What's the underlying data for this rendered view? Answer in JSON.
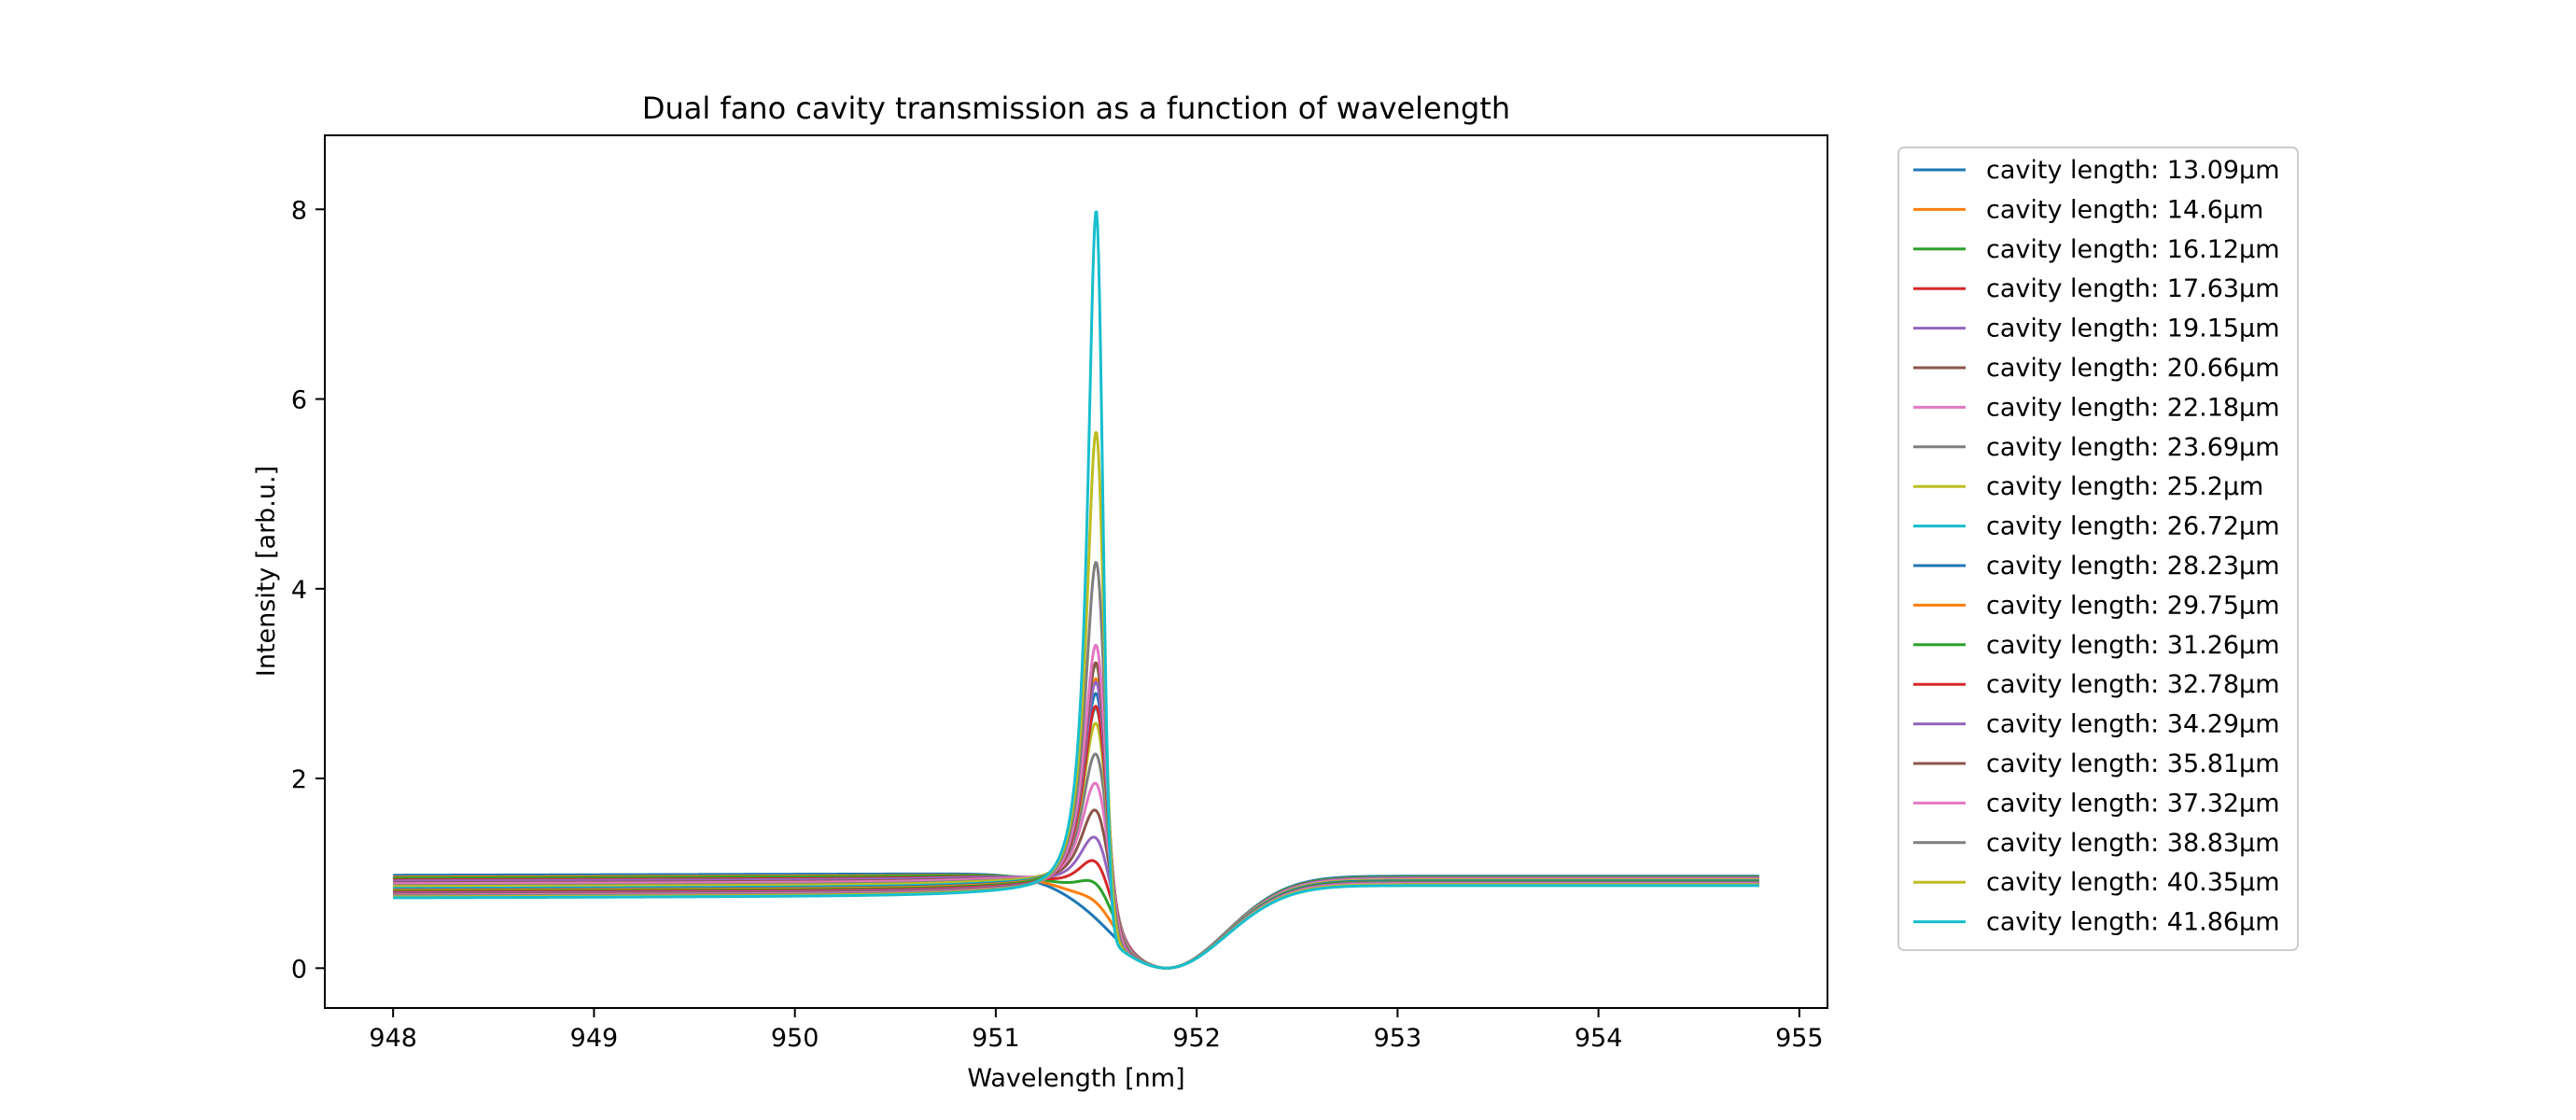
{
  "chart_data": {
    "type": "line",
    "title": "Dual fano cavity transmission as a function of wavelength",
    "xlabel": "Wavelength [nm]",
    "ylabel": "Intensity [arb.u.]",
    "xlim": [
      947.66,
      955.14
    ],
    "ylim": [
      -0.42,
      8.78
    ],
    "x_ticks": [
      948,
      949,
      950,
      951,
      952,
      953,
      954,
      955
    ],
    "x_tick_labels": [
      "948",
      "949",
      "950",
      "951",
      "952",
      "953",
      "954",
      "955"
    ],
    "y_ticks": [
      0,
      2,
      4,
      6,
      8
    ],
    "y_tick_labels": [
      "0",
      "2",
      "4",
      "6",
      "8"
    ],
    "grid": false,
    "legend_position": "outside-right",
    "x_range": [
      948.0,
      954.8
    ],
    "series": [
      {
        "name": "cavity length: 13.09µm",
        "color": "#1f77b4",
        "baseline": 0.98,
        "peak": 1.0,
        "tail": 0.97
      },
      {
        "name": "cavity length: 14.6µm",
        "color": "#ff7f0e",
        "baseline": 0.96,
        "peak": 1.16,
        "tail": 0.96
      },
      {
        "name": "cavity length: 16.12µm",
        "color": "#2ca02c",
        "baseline": 0.95,
        "peak": 1.35,
        "tail": 0.96
      },
      {
        "name": "cavity length: 17.63µm",
        "color": "#d62728",
        "baseline": 0.93,
        "peak": 1.57,
        "tail": 0.95
      },
      {
        "name": "cavity length: 19.15µm",
        "color": "#9467bd",
        "baseline": 0.92,
        "peak": 1.82,
        "tail": 0.95
      },
      {
        "name": "cavity length: 20.66µm",
        "color": "#8c564b",
        "baseline": 0.9,
        "peak": 2.1,
        "tail": 0.94
      },
      {
        "name": "cavity length: 22.18µm",
        "color": "#e377c2",
        "baseline": 0.89,
        "peak": 2.38,
        "tail": 0.94
      },
      {
        "name": "cavity length: 23.69µm",
        "color": "#7f7f7f",
        "baseline": 0.87,
        "peak": 2.68,
        "tail": 0.93
      },
      {
        "name": "cavity length: 25.2µm",
        "color": "#bcbd22",
        "baseline": 0.86,
        "peak": 3.0,
        "tail": 0.93
      },
      {
        "name": "cavity length: 26.72µm",
        "color": "#17becf",
        "baseline": 0.84,
        "peak": 3.15,
        "tail": 0.92
      },
      {
        "name": "cavity length: 28.23µm",
        "color": "#1f77b4",
        "baseline": 0.83,
        "peak": 3.3,
        "tail": 0.92
      },
      {
        "name": "cavity length: 29.75µm",
        "color": "#ff7f0e",
        "baseline": 0.82,
        "peak": 3.45,
        "tail": 0.91
      },
      {
        "name": "cavity length: 31.26µm",
        "color": "#2ca02c",
        "baseline": 0.81,
        "peak": 3.6,
        "tail": 0.91
      },
      {
        "name": "cavity length: 32.78µm",
        "color": "#d62728",
        "baseline": 0.8,
        "peak": 3.15,
        "tail": 0.9
      },
      {
        "name": "cavity length: 34.29µm",
        "color": "#9467bd",
        "baseline": 0.79,
        "peak": 3.4,
        "tail": 0.9
      },
      {
        "name": "cavity length: 35.81µm",
        "color": "#8c564b",
        "baseline": 0.78,
        "peak": 3.6,
        "tail": 0.89
      },
      {
        "name": "cavity length: 37.32µm",
        "color": "#e377c2",
        "baseline": 0.77,
        "peak": 3.78,
        "tail": 0.89
      },
      {
        "name": "cavity length: 38.83µm",
        "color": "#7f7f7f",
        "baseline": 0.76,
        "peak": 4.65,
        "tail": 0.88
      },
      {
        "name": "cavity length: 40.35µm",
        "color": "#bcbd22",
        "baseline": 0.75,
        "peak": 6.02,
        "tail": 0.88
      },
      {
        "name": "cavity length: 41.86µm",
        "color": "#17becf",
        "baseline": 0.74,
        "peak": 8.35,
        "tail": 0.87
      }
    ]
  }
}
